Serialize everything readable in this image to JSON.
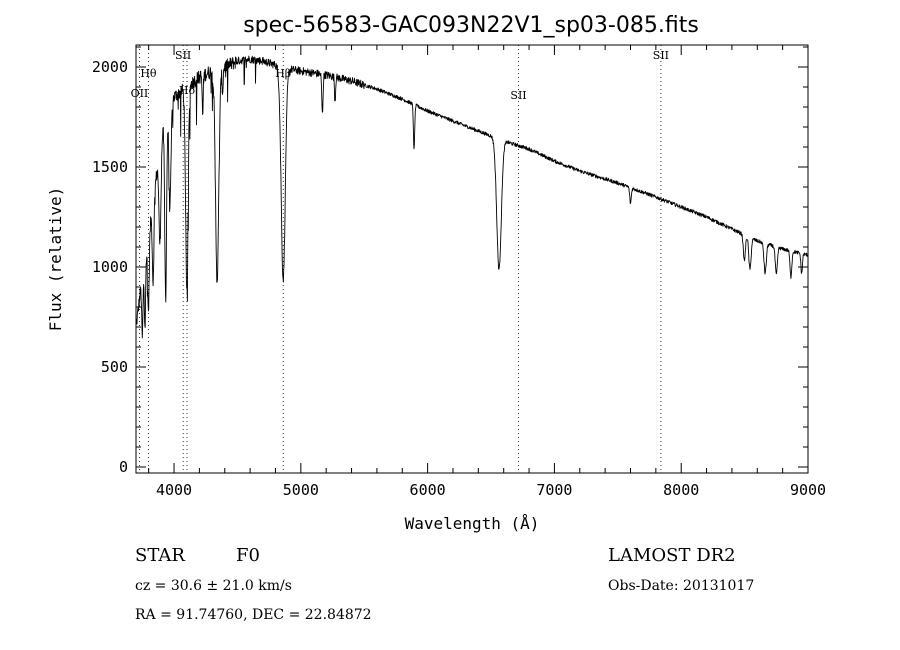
{
  "chart_data": {
    "type": "line",
    "title": "spec-56583-GAC093N22V1_sp03-085.fits",
    "xlabel": "Wavelength (Å)",
    "ylabel": "Flux (relative)",
    "xlim": [
      3700,
      9000
    ],
    "ylim": [
      -30,
      2110
    ],
    "xticks": [
      4000,
      5000,
      6000,
      7000,
      8000,
      9000
    ],
    "yticks": [
      0,
      500,
      1000,
      1500,
      2000
    ],
    "spectrum": {
      "continuum": [
        [
          3700,
          700
        ],
        [
          3750,
          950
        ],
        [
          3800,
          1150
        ],
        [
          3850,
          1400
        ],
        [
          3900,
          1650
        ],
        [
          3950,
          1780
        ],
        [
          4000,
          1850
        ],
        [
          4100,
          1900
        ],
        [
          4200,
          1950
        ],
        [
          4300,
          1980
        ],
        [
          4400,
          2000
        ],
        [
          4500,
          2030
        ],
        [
          4600,
          2040
        ],
        [
          4700,
          2030
        ],
        [
          4800,
          2010
        ],
        [
          4900,
          1990
        ],
        [
          5000,
          1980
        ],
        [
          5200,
          1960
        ],
        [
          5400,
          1930
        ],
        [
          5600,
          1890
        ],
        [
          5800,
          1840
        ],
        [
          6000,
          1780
        ],
        [
          6200,
          1730
        ],
        [
          6400,
          1680
        ],
        [
          6600,
          1630
        ],
        [
          6800,
          1590
        ],
        [
          7000,
          1530
        ],
        [
          7200,
          1480
        ],
        [
          7500,
          1420
        ],
        [
          7800,
          1350
        ],
        [
          8000,
          1300
        ],
        [
          8200,
          1250
        ],
        [
          8400,
          1190
        ],
        [
          8600,
          1130
        ],
        [
          8800,
          1090
        ],
        [
          9000,
          1060
        ]
      ],
      "absorption": [
        {
          "center": 3750,
          "depth": 300,
          "width": 5
        },
        {
          "center": 3770,
          "depth": 320,
          "width": 5
        },
        {
          "center": 3798,
          "depth": 360,
          "width": 6
        },
        {
          "center": 3835,
          "depth": 400,
          "width": 6
        },
        {
          "center": 3889,
          "depth": 480,
          "width": 8
        },
        {
          "center": 3934,
          "depth": 900,
          "width": 7
        },
        {
          "center": 3968,
          "depth": 500,
          "width": 8
        },
        {
          "center": 4101,
          "depth": 1000,
          "width": 10
        },
        {
          "center": 4226,
          "depth": 200,
          "width": 4
        },
        {
          "center": 4340,
          "depth": 1050,
          "width": 13
        },
        {
          "center": 4383,
          "depth": 120,
          "width": 4
        },
        {
          "center": 4861,
          "depth": 1060,
          "width": 16
        },
        {
          "center": 5170,
          "depth": 200,
          "width": 5
        },
        {
          "center": 5270,
          "depth": 120,
          "width": 4
        },
        {
          "center": 5893,
          "depth": 230,
          "width": 5
        },
        {
          "center": 6563,
          "depth": 650,
          "width": 18
        },
        {
          "center": 7600,
          "depth": 80,
          "width": 6
        },
        {
          "center": 8498,
          "depth": 130,
          "width": 8
        },
        {
          "center": 8542,
          "depth": 160,
          "width": 9
        },
        {
          "center": 8662,
          "depth": 150,
          "width": 9
        },
        {
          "center": 8750,
          "depth": 140,
          "width": 8
        },
        {
          "center": 8865,
          "depth": 130,
          "width": 7
        },
        {
          "center": 8950,
          "depth": 100,
          "width": 6
        }
      ]
    },
    "line_markers": [
      {
        "label": "OII",
        "x": 3727,
        "label_y": 1850
      },
      {
        "label": "Hθ",
        "x": 3798,
        "label_y": 1950
      },
      {
        "label": "SII",
        "x": 4072,
        "label_y": 2040
      },
      {
        "label": "Hδ",
        "x": 4102,
        "label_y": 1865
      },
      {
        "label": "Hβ",
        "x": 4861,
        "label_y": 1950
      },
      {
        "label": "SII",
        "x": 6717,
        "label_y": 1840
      },
      {
        "label": "SII",
        "x": 7840,
        "label_y": 2040
      }
    ]
  },
  "info": {
    "class": "STAR",
    "subclass": "F0",
    "survey": "LAMOST DR2",
    "cz": "cz = 30.6 ± 21.0 km/s",
    "obs_date": "Obs-Date: 20131017",
    "radec": "RA =  91.74760, DEC =  22.84872"
  }
}
